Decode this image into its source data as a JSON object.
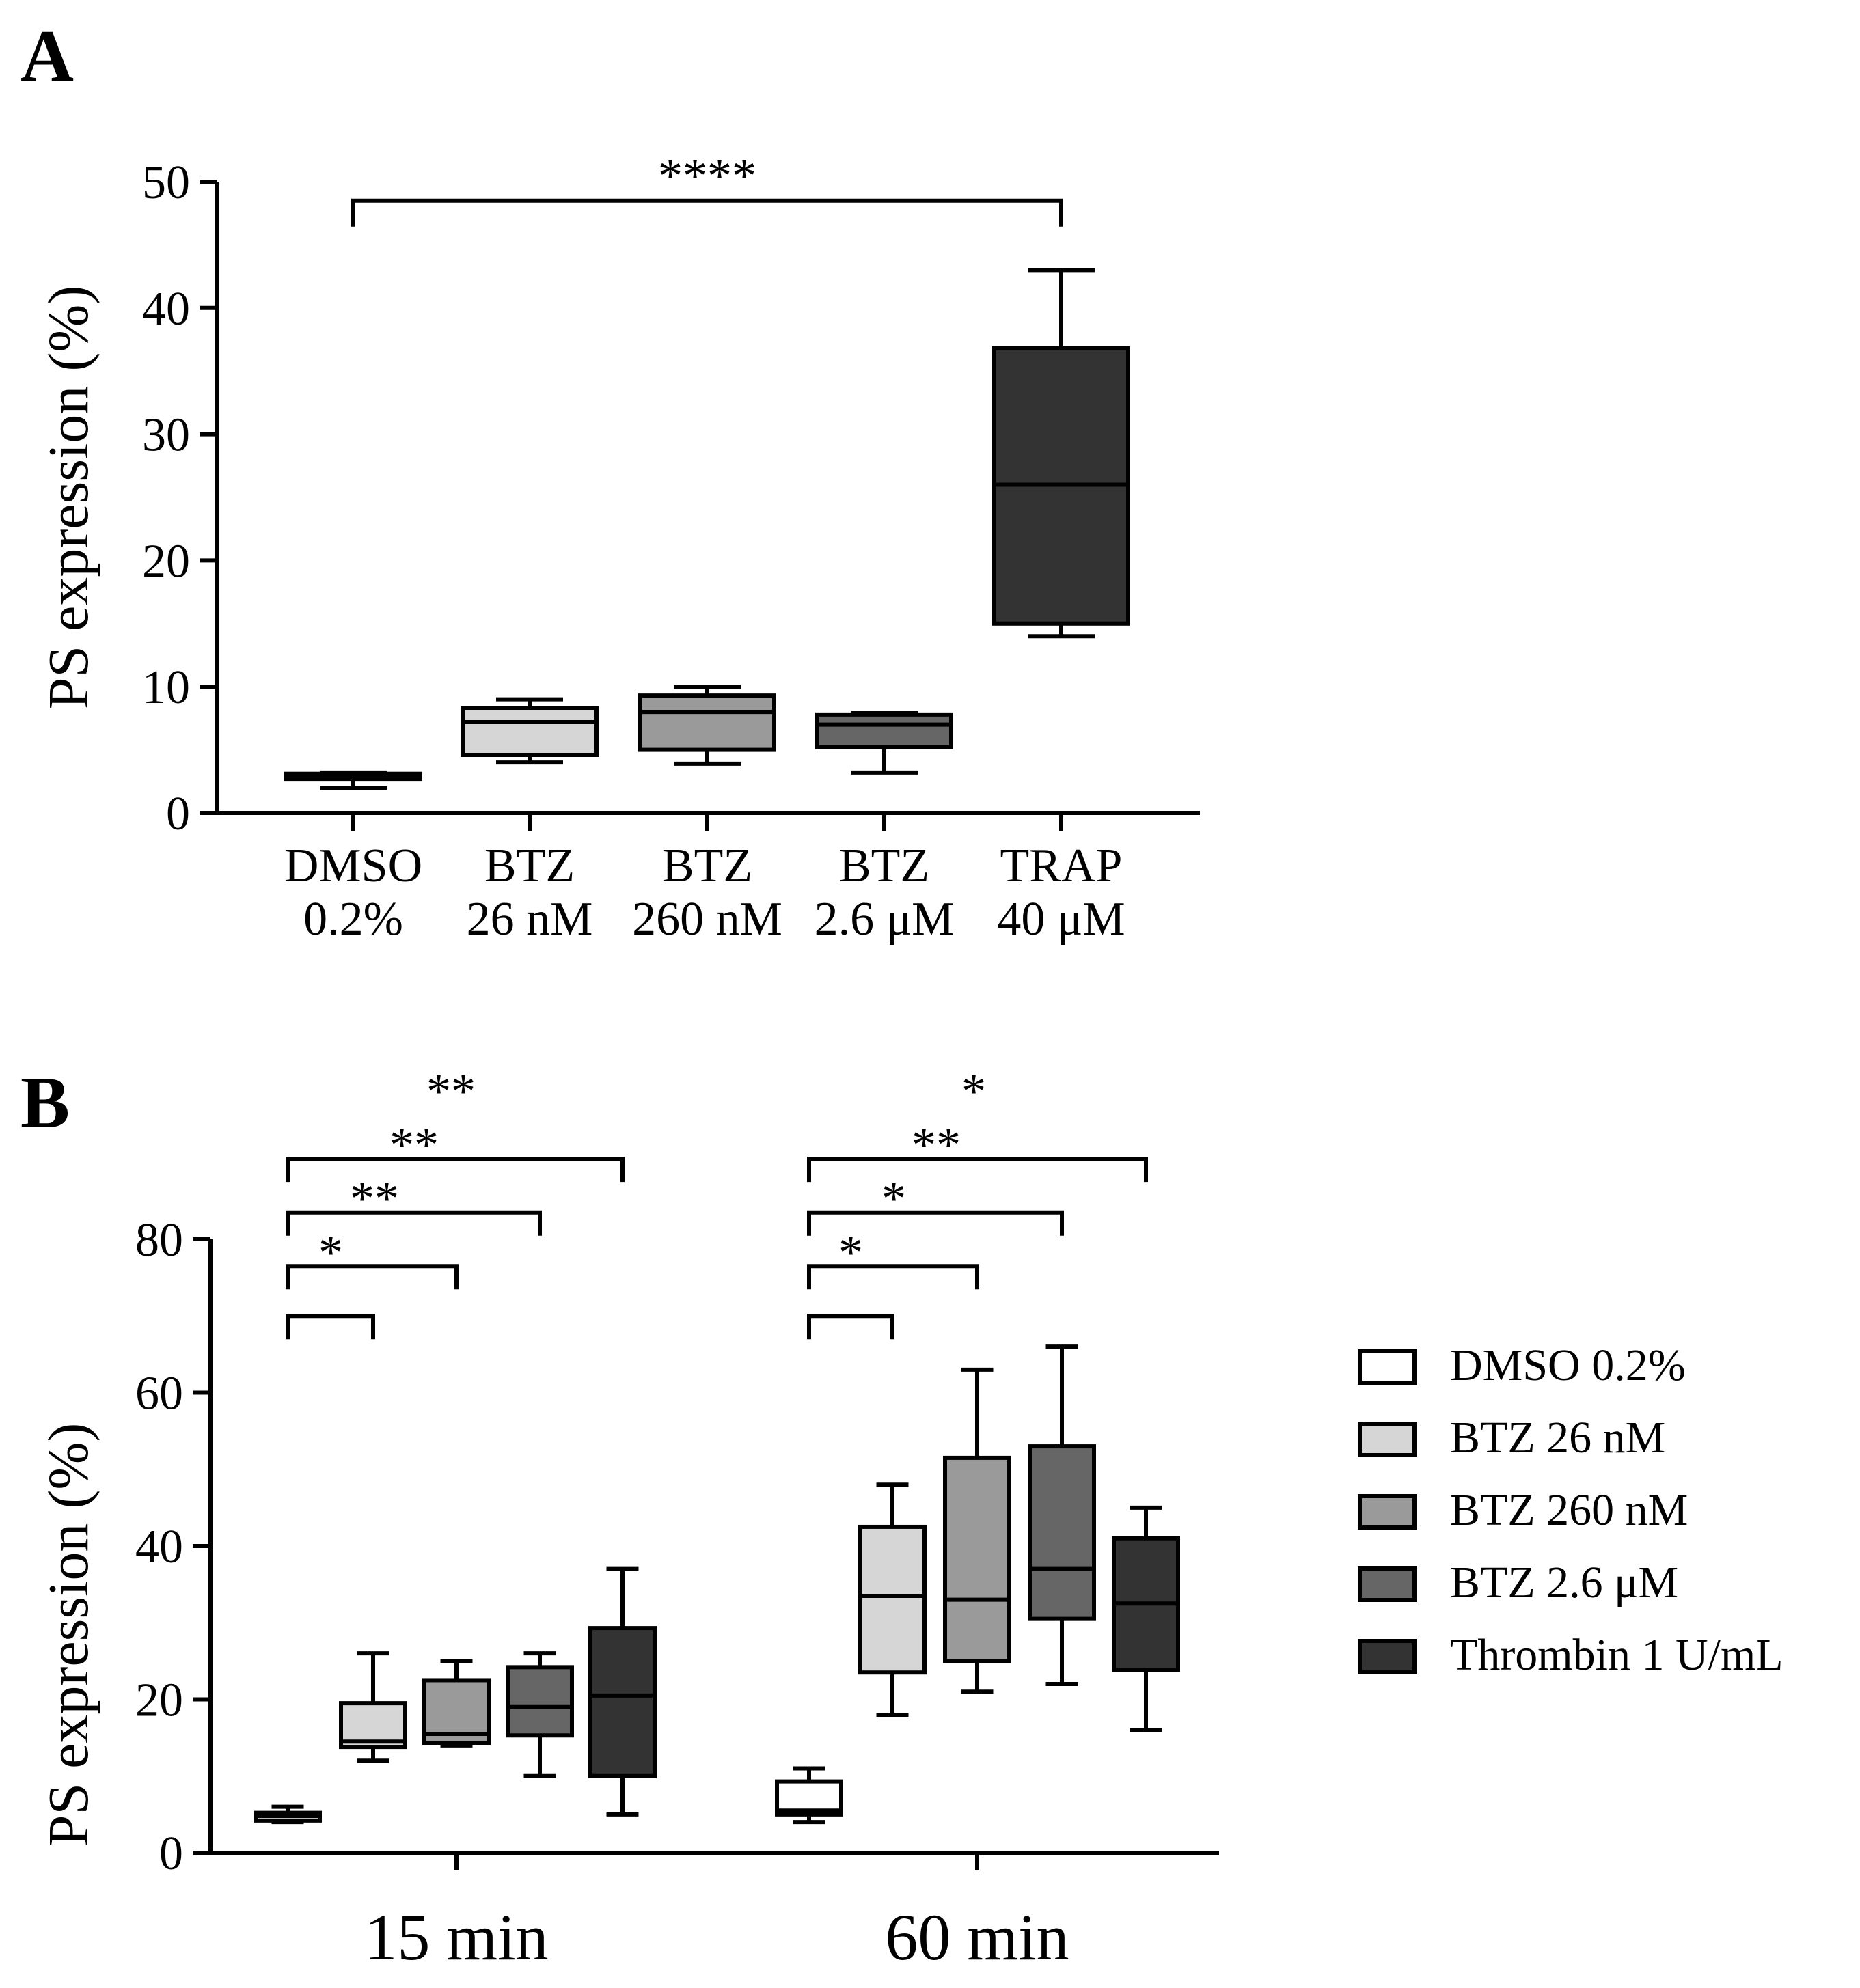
{
  "colors": {
    "white": "#ffffff",
    "light": "#d6d6d6",
    "mid": "#9a9a9a",
    "dark": "#666666",
    "darkest": "#333333",
    "ink": "#000000"
  },
  "chart_data": [
    {
      "panel": "A",
      "type": "boxplot",
      "ylabel": "PS expression (%)",
      "ylim": [
        0,
        50
      ],
      "yticks": [
        0,
        10,
        20,
        30,
        40,
        50
      ],
      "categories": [
        [
          "DMSO",
          "0.2%"
        ],
        [
          "BTZ",
          "26 nM"
        ],
        [
          "BTZ",
          "260 nM"
        ],
        [
          "BTZ",
          "2.6 μM"
        ],
        [
          "TRAP",
          "40 μM"
        ]
      ],
      "boxes": [
        {
          "min": 2,
          "q1": 2.7,
          "median": 3,
          "q3": 3.1,
          "max": 3.2,
          "color_key": "white"
        },
        {
          "min": 4,
          "q1": 4.6,
          "median": 7.2,
          "q3": 8.3,
          "max": 9,
          "color_key": "light"
        },
        {
          "min": 3.9,
          "q1": 5,
          "median": 8,
          "q3": 9.3,
          "max": 10,
          "color_key": "mid"
        },
        {
          "min": 3.2,
          "q1": 5.2,
          "median": 7,
          "q3": 7.8,
          "max": 7.9,
          "color_key": "dark"
        },
        {
          "min": 14,
          "q1": 15,
          "median": 26,
          "q3": 36.8,
          "max": 43,
          "color_key": "darkest"
        }
      ],
      "significance": [
        {
          "from": 0,
          "to": 4,
          "label": "****",
          "y": 48.5
        }
      ]
    },
    {
      "panel": "B",
      "type": "grouped-boxplot",
      "ylabel": "PS expression (%)",
      "ylim": [
        0,
        80
      ],
      "yticks": [
        0,
        20,
        40,
        60,
        80
      ],
      "groups": [
        "15 min",
        "60 min"
      ],
      "series": [
        {
          "name": "DMSO 0.2%",
          "color_key": "white"
        },
        {
          "name": "BTZ 26 nM",
          "color_key": "light"
        },
        {
          "name": "BTZ 260 nM",
          "color_key": "mid"
        },
        {
          "name": "BTZ 2.6 μM",
          "color_key": "dark"
        },
        {
          "name": "Thrombin 1 U/mL",
          "color_key": "darkest"
        }
      ],
      "boxes": [
        [
          {
            "min": 4,
            "q1": 4.2,
            "median": 4.8,
            "q3": 5.2,
            "max": 6
          },
          {
            "min": 12,
            "q1": 13.8,
            "median": 14.5,
            "q3": 19.5,
            "max": 26
          },
          {
            "min": 14,
            "q1": 14.3,
            "median": 15.5,
            "q3": 22.5,
            "max": 25
          },
          {
            "min": 10,
            "q1": 15.3,
            "median": 19,
            "q3": 24.2,
            "max": 26
          },
          {
            "min": 5,
            "q1": 10,
            "median": 20.5,
            "q3": 29.3,
            "max": 37
          }
        ],
        [
          {
            "min": 4,
            "q1": 5,
            "median": 5.5,
            "q3": 9.3,
            "max": 11
          },
          {
            "min": 18,
            "q1": 23.5,
            "median": 33.5,
            "q3": 42.5,
            "max": 48
          },
          {
            "min": 21,
            "q1": 25,
            "median": 33,
            "q3": 51.5,
            "max": 63
          },
          {
            "min": 22,
            "q1": 30.5,
            "median": 37,
            "q3": 53,
            "max": 66
          },
          {
            "min": 16,
            "q1": 23.8,
            "median": 32.5,
            "q3": 41,
            "max": 45
          }
        ]
      ],
      "significance": [
        [
          {
            "to": 1,
            "label": "",
            "y": 70
          },
          {
            "to": 2,
            "label": "*",
            "y": 76.5
          },
          {
            "to": 3,
            "label": "**",
            "y": 83.5
          },
          {
            "to": 4,
            "label": "**",
            "y": 90.5
          },
          {
            "to": 4,
            "label": "**",
            "y": 90.5,
            "skip": true
          }
        ],
        [
          {
            "to": 1,
            "label": "",
            "y": 70
          },
          {
            "to": 2,
            "label": "*",
            "y": 76.5
          },
          {
            "to": 3,
            "label": "*",
            "y": 83.5
          },
          {
            "to": 4,
            "label": "**",
            "y": 90.5
          },
          {
            "to": 4,
            "label": "*",
            "y": 90.5,
            "skip": true
          }
        ]
      ]
    }
  ],
  "panels": {
    "a_letter": "A",
    "b_letter": "B"
  }
}
